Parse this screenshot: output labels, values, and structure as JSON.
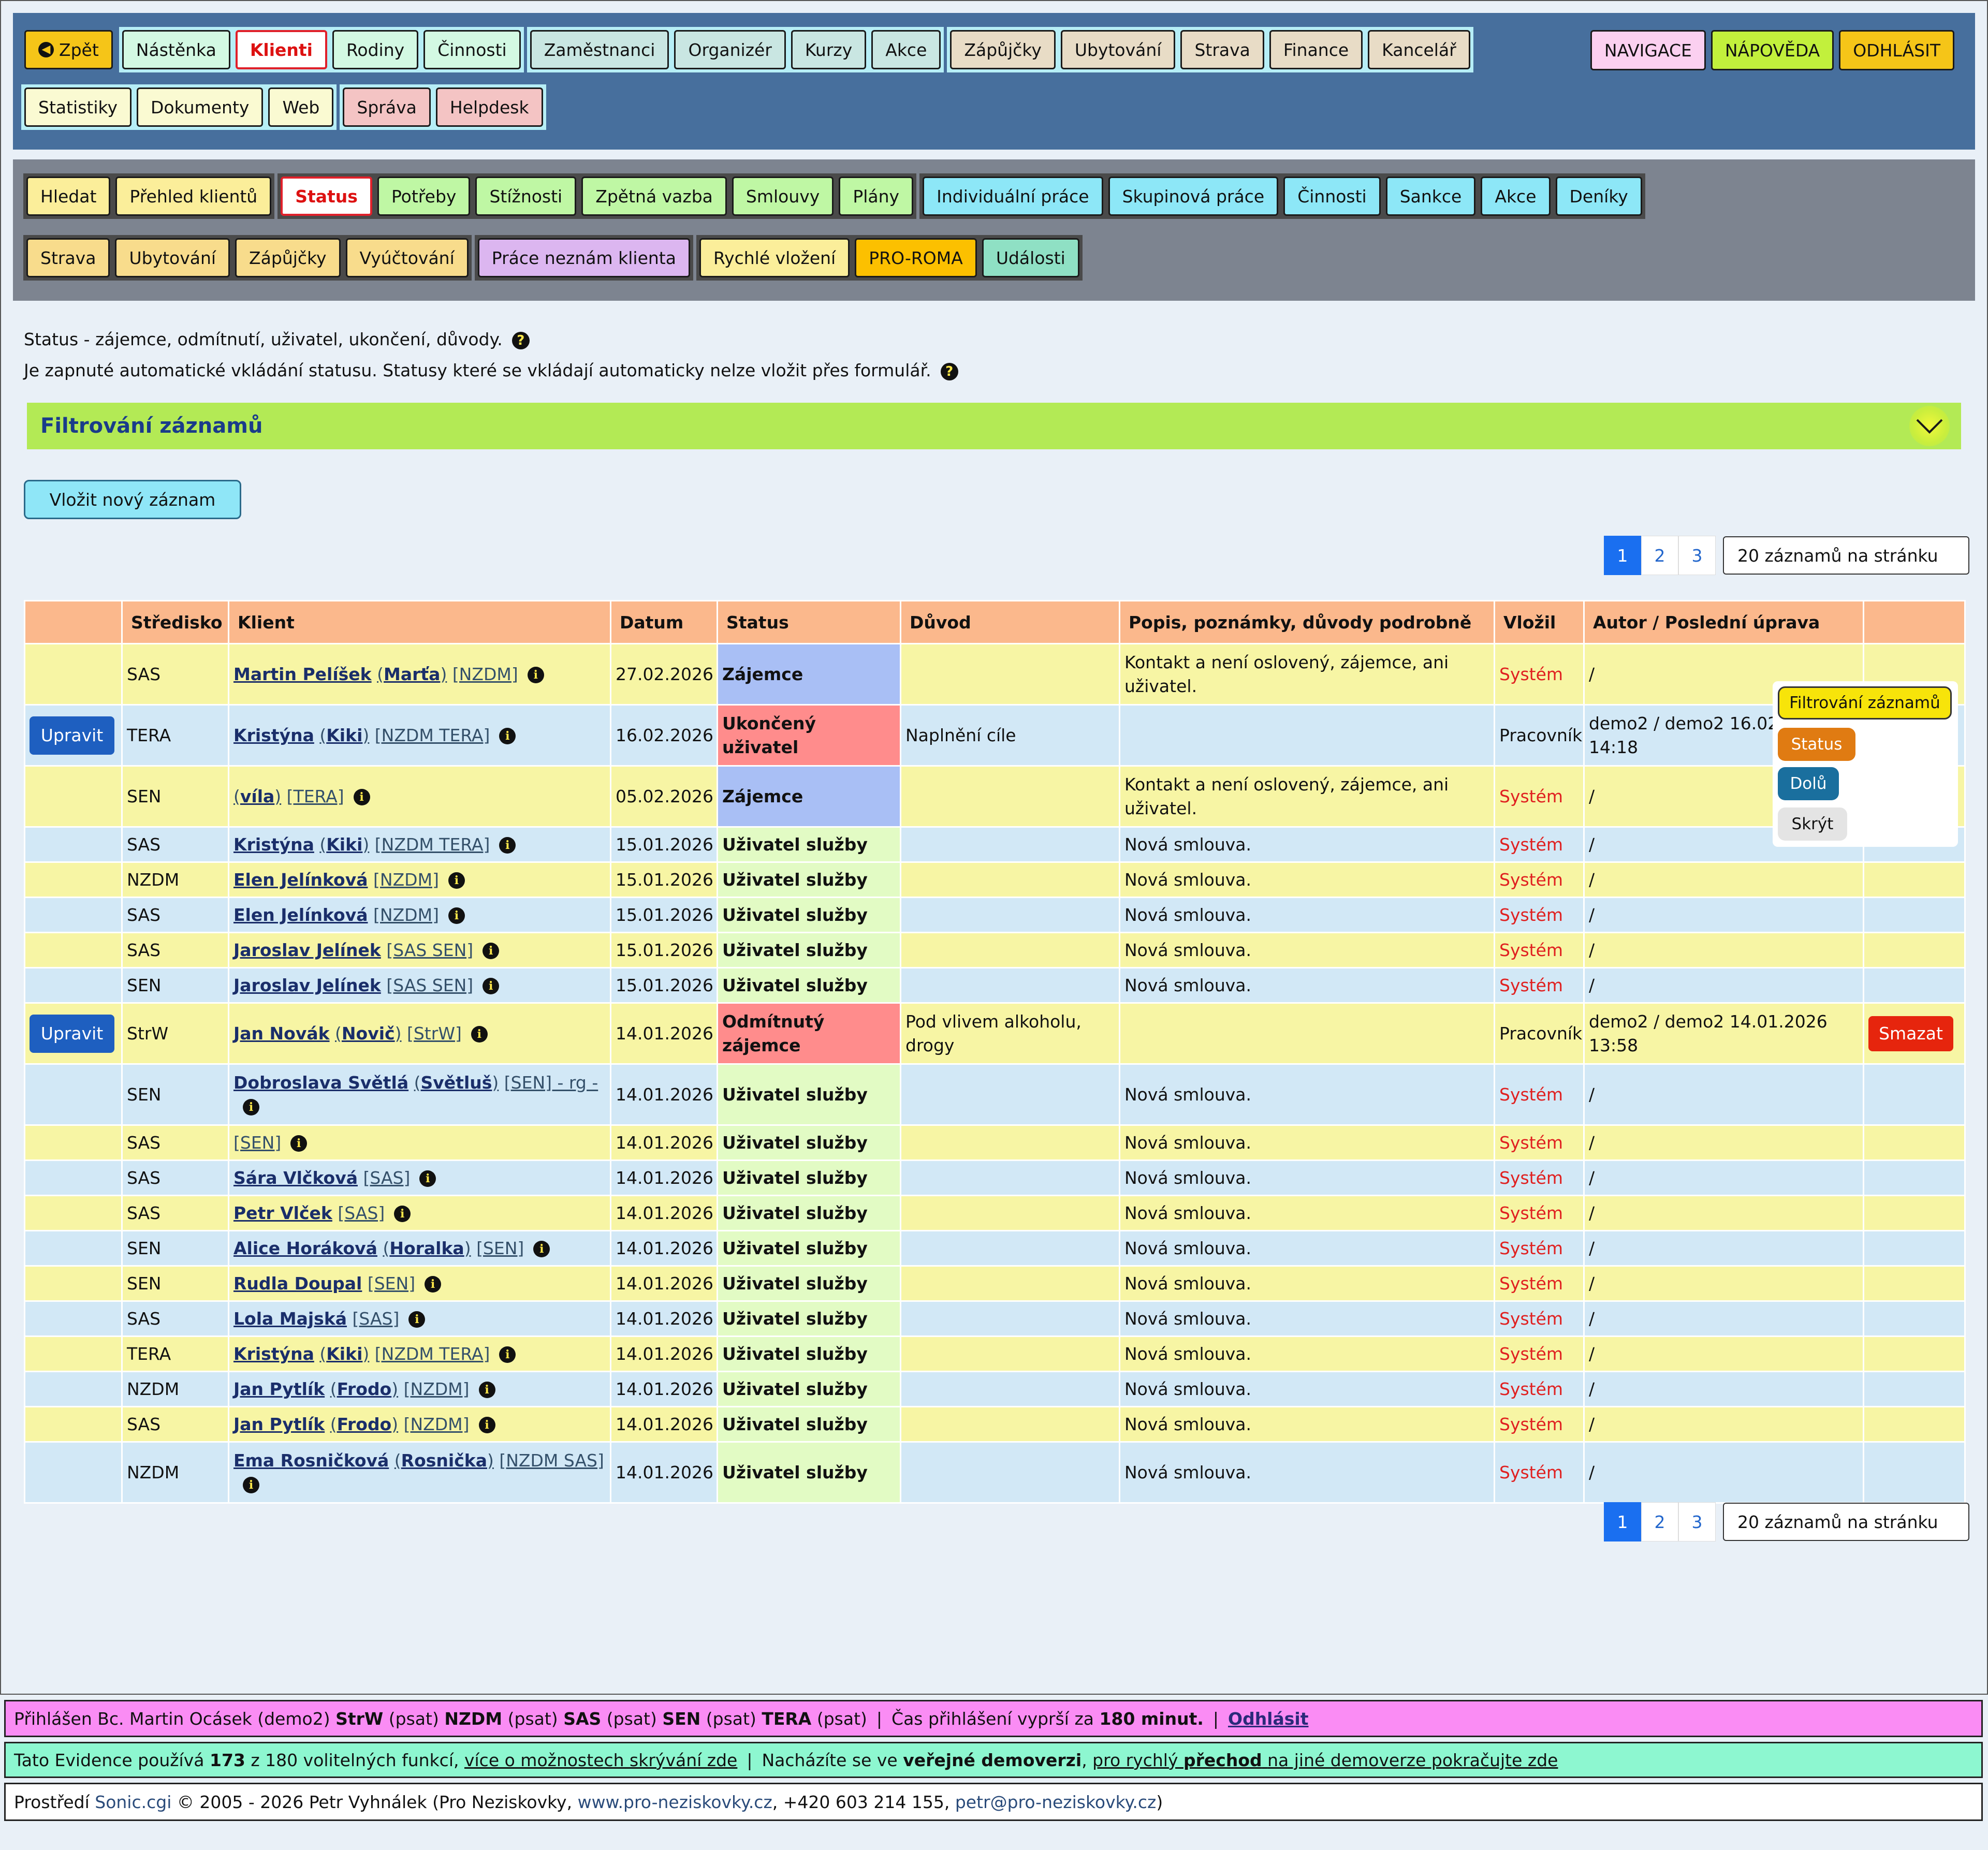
{
  "topnav": {
    "row1_groups": [
      {
        "buttons": [
          {
            "label": "Zpět",
            "icon": "back-arrow-icon"
          }
        ]
      },
      {
        "buttons": [
          {
            "label": "Nástěnka"
          },
          {
            "label": "Klienti",
            "active": true
          },
          {
            "label": "Rodiny"
          },
          {
            "label": "Činnosti"
          }
        ]
      },
      {
        "buttons": [
          {
            "label": "Zaměstnanci"
          },
          {
            "label": "Organizér"
          },
          {
            "label": "Kurzy"
          },
          {
            "label": "Akce"
          }
        ]
      },
      {
        "buttons": [
          {
            "label": "Zápůjčky"
          },
          {
            "label": "Ubytování"
          },
          {
            "label": "Strava"
          },
          {
            "label": "Finance"
          },
          {
            "label": "Kancelář"
          }
        ]
      }
    ],
    "row2_groups": [
      {
        "buttons": [
          {
            "label": "Statistiky"
          },
          {
            "label": "Dokumenty"
          },
          {
            "label": "Web"
          }
        ]
      },
      {
        "buttons": [
          {
            "label": "Správa"
          },
          {
            "label": "Helpdesk"
          }
        ]
      }
    ],
    "navigace": "NAVIGACE",
    "napoveda": "NÁPOVĚDA",
    "odhlasit": "ODHLÁSIT"
  },
  "subnav": {
    "row1_groups": [
      {
        "buttons": [
          {
            "label": "Hledat"
          },
          {
            "label": "Přehled klientů"
          }
        ]
      },
      {
        "buttons": [
          {
            "label": "Status",
            "active": true
          },
          {
            "label": "Potřeby"
          },
          {
            "label": "Stížnosti"
          },
          {
            "label": "Zpětná vazba"
          },
          {
            "label": "Smlouvy"
          },
          {
            "label": "Plány"
          }
        ]
      },
      {
        "buttons": [
          {
            "label": "Individuální práce"
          },
          {
            "label": "Skupinová práce"
          },
          {
            "label": "Činnosti"
          },
          {
            "label": "Sankce"
          },
          {
            "label": "Akce"
          },
          {
            "label": "Deníky"
          }
        ]
      }
    ],
    "row2_groups": [
      {
        "buttons": [
          {
            "label": "Strava"
          },
          {
            "label": "Ubytování"
          },
          {
            "label": "Zápůjčky"
          },
          {
            "label": "Vyúčtování"
          }
        ]
      },
      {
        "buttons": [
          {
            "label": "Práce neznám klienta"
          }
        ]
      },
      {
        "buttons": [
          {
            "label": "Rychlé vložení"
          },
          {
            "label": "PRO-ROMA"
          },
          {
            "label": "Události"
          }
        ]
      }
    ]
  },
  "info": {
    "line1": "Status - zájemce, odmítnutí, uživatel, ukončení, důvody.",
    "line2": "Je zapnuté automatické vkládání statusu. Statusy které se vkládají automaticky nelze vložit přes formulář."
  },
  "filter": {
    "title": "Filtrování záznamů"
  },
  "new_record": "Vložit nový záznam",
  "pagination": {
    "pages": [
      "1",
      "2",
      "3"
    ],
    "active": "1",
    "per_page": "20 záznamů na stránku"
  },
  "table": {
    "headers": [
      "",
      "Středisko",
      "Klient",
      "Datum",
      "Status",
      "Důvod",
      "Popis, poznámky, důvody podrobně",
      "Vložil",
      "Autor / Poslední úprava",
      ""
    ],
    "rows": [
      {
        "edit": "",
        "center": "SAS",
        "client_name": "Martin Pelíšek",
        "client_nick": "Marťa",
        "client_tags": "[NZDM]",
        "date": "27.02.2026",
        "status": "Zájemce",
        "status_kind": "int",
        "reason": "",
        "desc": "Kontakt a není oslovený, zájemce, ani uživatel.",
        "by": "Systém",
        "author": "/",
        "del": ""
      },
      {
        "edit": "Upravit",
        "center": "TERA",
        "client_name": "Kristýna",
        "client_nick": "Kiki",
        "client_tags": "[NZDM TERA]",
        "date": "16.02.2026",
        "status": "Ukončený uživatel",
        "status_kind": "end",
        "reason": "Naplnění cíle",
        "desc": "",
        "by": "Pracovník",
        "author": "demo2 / demo2 16.02.2026 14:18",
        "del": ""
      },
      {
        "edit": "",
        "center": "SEN",
        "client_name": "",
        "client_nick": "víla",
        "client_tags": "[TERA]",
        "date": "05.02.2026",
        "status": "Zájemce",
        "status_kind": "int",
        "reason": "",
        "desc": "Kontakt a není oslovený, zájemce, ani uživatel.",
        "by": "Systém",
        "author": "/",
        "del": ""
      },
      {
        "edit": "",
        "center": "SAS",
        "client_name": "Kristýna",
        "client_nick": "Kiki",
        "client_tags": "[NZDM TERA]",
        "date": "15.01.2026",
        "status": "Uživatel služby",
        "status_kind": "usr",
        "reason": "",
        "desc": "Nová smlouva.",
        "by": "Systém",
        "author": "/",
        "del": ""
      },
      {
        "edit": "",
        "center": "NZDM",
        "client_name": "Elen Jelínková",
        "client_nick": "",
        "client_tags": "[NZDM]",
        "date": "15.01.2026",
        "status": "Uživatel služby",
        "status_kind": "usr",
        "reason": "",
        "desc": "Nová smlouva.",
        "by": "Systém",
        "author": "/",
        "del": ""
      },
      {
        "edit": "",
        "center": "SAS",
        "client_name": "Elen Jelínková",
        "client_nick": "",
        "client_tags": "[NZDM]",
        "date": "15.01.2026",
        "status": "Uživatel služby",
        "status_kind": "usr",
        "reason": "",
        "desc": "Nová smlouva.",
        "by": "Systém",
        "author": "/",
        "del": ""
      },
      {
        "edit": "",
        "center": "SAS",
        "client_name": "Jaroslav Jelínek",
        "client_nick": "",
        "client_tags": "[SAS SEN]",
        "date": "15.01.2026",
        "status": "Uživatel služby",
        "status_kind": "usr",
        "reason": "",
        "desc": "Nová smlouva.",
        "by": "Systém",
        "author": "/",
        "del": ""
      },
      {
        "edit": "",
        "center": "SEN",
        "client_name": "Jaroslav Jelínek",
        "client_nick": "",
        "client_tags": "[SAS SEN]",
        "date": "15.01.2026",
        "status": "Uživatel služby",
        "status_kind": "usr",
        "reason": "",
        "desc": "Nová smlouva.",
        "by": "Systém",
        "author": "/",
        "del": ""
      },
      {
        "edit": "Upravit",
        "center": "StrW",
        "client_name": "Jan Novák",
        "client_nick": "Novič",
        "client_tags": "[StrW]",
        "date": "14.01.2026",
        "status": "Odmítnutý zájemce",
        "status_kind": "end",
        "reason": "Pod vlivem alkoholu, drogy",
        "desc": "",
        "by": "Pracovník",
        "author": "demo2 / demo2 14.01.2026 13:58",
        "del": "Smazat"
      },
      {
        "edit": "",
        "center": "SEN",
        "client_name": "Dobroslava Světlá",
        "client_nick": "Světluš",
        "client_tags": "[SEN] - rg -",
        "date": "14.01.2026",
        "status": "Uživatel služby",
        "status_kind": "usr",
        "reason": "",
        "desc": "Nová smlouva.",
        "by": "Systém",
        "author": "/",
        "del": ""
      },
      {
        "edit": "",
        "center": "SAS",
        "client_name": "",
        "client_nick": "",
        "client_tags": "[SEN]",
        "date": "14.01.2026",
        "status": "Uživatel služby",
        "status_kind": "usr",
        "reason": "",
        "desc": "Nová smlouva.",
        "by": "Systém",
        "author": "/",
        "del": ""
      },
      {
        "edit": "",
        "center": "SAS",
        "client_name": "Sára Vlčková",
        "client_nick": "",
        "client_tags": "[SAS]",
        "date": "14.01.2026",
        "status": "Uživatel služby",
        "status_kind": "usr",
        "reason": "",
        "desc": "Nová smlouva.",
        "by": "Systém",
        "author": "/",
        "del": ""
      },
      {
        "edit": "",
        "center": "SAS",
        "client_name": "Petr Vlček",
        "client_nick": "",
        "client_tags": "[SAS]",
        "date": "14.01.2026",
        "status": "Uživatel služby",
        "status_kind": "usr",
        "reason": "",
        "desc": "Nová smlouva.",
        "by": "Systém",
        "author": "/",
        "del": ""
      },
      {
        "edit": "",
        "center": "SEN",
        "client_name": "Alice Horáková",
        "client_nick": "Horalka",
        "client_tags": "[SEN]",
        "date": "14.01.2026",
        "status": "Uživatel služby",
        "status_kind": "usr",
        "reason": "",
        "desc": "Nová smlouva.",
        "by": "Systém",
        "author": "/",
        "del": ""
      },
      {
        "edit": "",
        "center": "SEN",
        "client_name": "Rudla Doupal",
        "client_nick": "",
        "client_tags": "[SEN]",
        "date": "14.01.2026",
        "status": "Uživatel služby",
        "status_kind": "usr",
        "reason": "",
        "desc": "Nová smlouva.",
        "by": "Systém",
        "author": "/",
        "del": ""
      },
      {
        "edit": "",
        "center": "SAS",
        "client_name": "Lola Majská",
        "client_nick": "",
        "client_tags": "[SAS]",
        "date": "14.01.2026",
        "status": "Uživatel služby",
        "status_kind": "usr",
        "reason": "",
        "desc": "Nová smlouva.",
        "by": "Systém",
        "author": "/",
        "del": ""
      },
      {
        "edit": "",
        "center": "TERA",
        "client_name": "Kristýna",
        "client_nick": "Kiki",
        "client_tags": "[NZDM TERA]",
        "date": "14.01.2026",
        "status": "Uživatel služby",
        "status_kind": "usr",
        "reason": "",
        "desc": "Nová smlouva.",
        "by": "Systém",
        "author": "/",
        "del": ""
      },
      {
        "edit": "",
        "center": "NZDM",
        "client_name": "Jan Pytlík",
        "client_nick": "Frodo",
        "client_tags": "[NZDM]",
        "date": "14.01.2026",
        "status": "Uživatel služby",
        "status_kind": "usr",
        "reason": "",
        "desc": "Nová smlouva.",
        "by": "Systém",
        "author": "/",
        "del": ""
      },
      {
        "edit": "",
        "center": "SAS",
        "client_name": "Jan Pytlík",
        "client_nick": "Frodo",
        "client_tags": "[NZDM]",
        "date": "14.01.2026",
        "status": "Uživatel služby",
        "status_kind": "usr",
        "reason": "",
        "desc": "Nová smlouva.",
        "by": "Systém",
        "author": "/",
        "del": ""
      },
      {
        "edit": "",
        "center": "NZDM",
        "client_name": "Ema Rosničková",
        "client_nick": "Rosnička",
        "client_tags": "[NZDM SAS]",
        "date": "14.01.2026",
        "status": "Uživatel služby",
        "status_kind": "usr",
        "reason": "",
        "desc": "Nová smlouva.",
        "by": "Systém",
        "author": "/",
        "del": ""
      }
    ]
  },
  "float_panel": {
    "filter": "Filtrování záznamů",
    "status": "Status",
    "down": "Dolů",
    "hide": "Skrýt"
  },
  "footer": {
    "login_prefix": "Přihlášen Bc. Martin Ocásek (demo2) ",
    "login_centers": [
      {
        "name": "StrW",
        "role": "(psat)"
      },
      {
        "name": "NZDM",
        "role": "(psat)"
      },
      {
        "name": "SAS",
        "role": "(psat)"
      },
      {
        "name": "SEN",
        "role": "(psat)"
      },
      {
        "name": "TERA",
        "role": "(psat)"
      }
    ],
    "session_text": "Čas přihlášení vyprší za",
    "session_minutes": "180 minut.",
    "logout_link": "Odhlásit",
    "features_prefix": "Tato Evidence používá",
    "features_used": "173",
    "features_suffix": "z 180 volitelných funkcí,",
    "features_link": "více o možnostech skrývání zde",
    "demo_text": "Nacházíte se ve",
    "demo_bold": "veřejné demoverzi",
    "demo_link_pre": "pro rychlý",
    "demo_link_bold": "přechod",
    "demo_link_post": "na jiné demoverze pokračujte zde",
    "copyright_pre": "Prostředí",
    "copyright_link": "Sonic.cgi",
    "copyright_mid": "© 2005 - 2026 Petr Vyhnálek (Pro Neziskovky,",
    "web_link": "www.pro-neziskovky.cz",
    "phone": ", +420 603 214 155,",
    "email_link": "petr@pro-neziskovky.cz",
    "copyright_end": ")"
  },
  "colors": {
    "topnav_bg": "#476f9d",
    "subnav_bg": "#7d8490",
    "filter_bar": "#b3ea55",
    "header_row": "#fbb88c",
    "row_yellow": "#f7f5a4",
    "row_blue": "#d2e8f6"
  }
}
